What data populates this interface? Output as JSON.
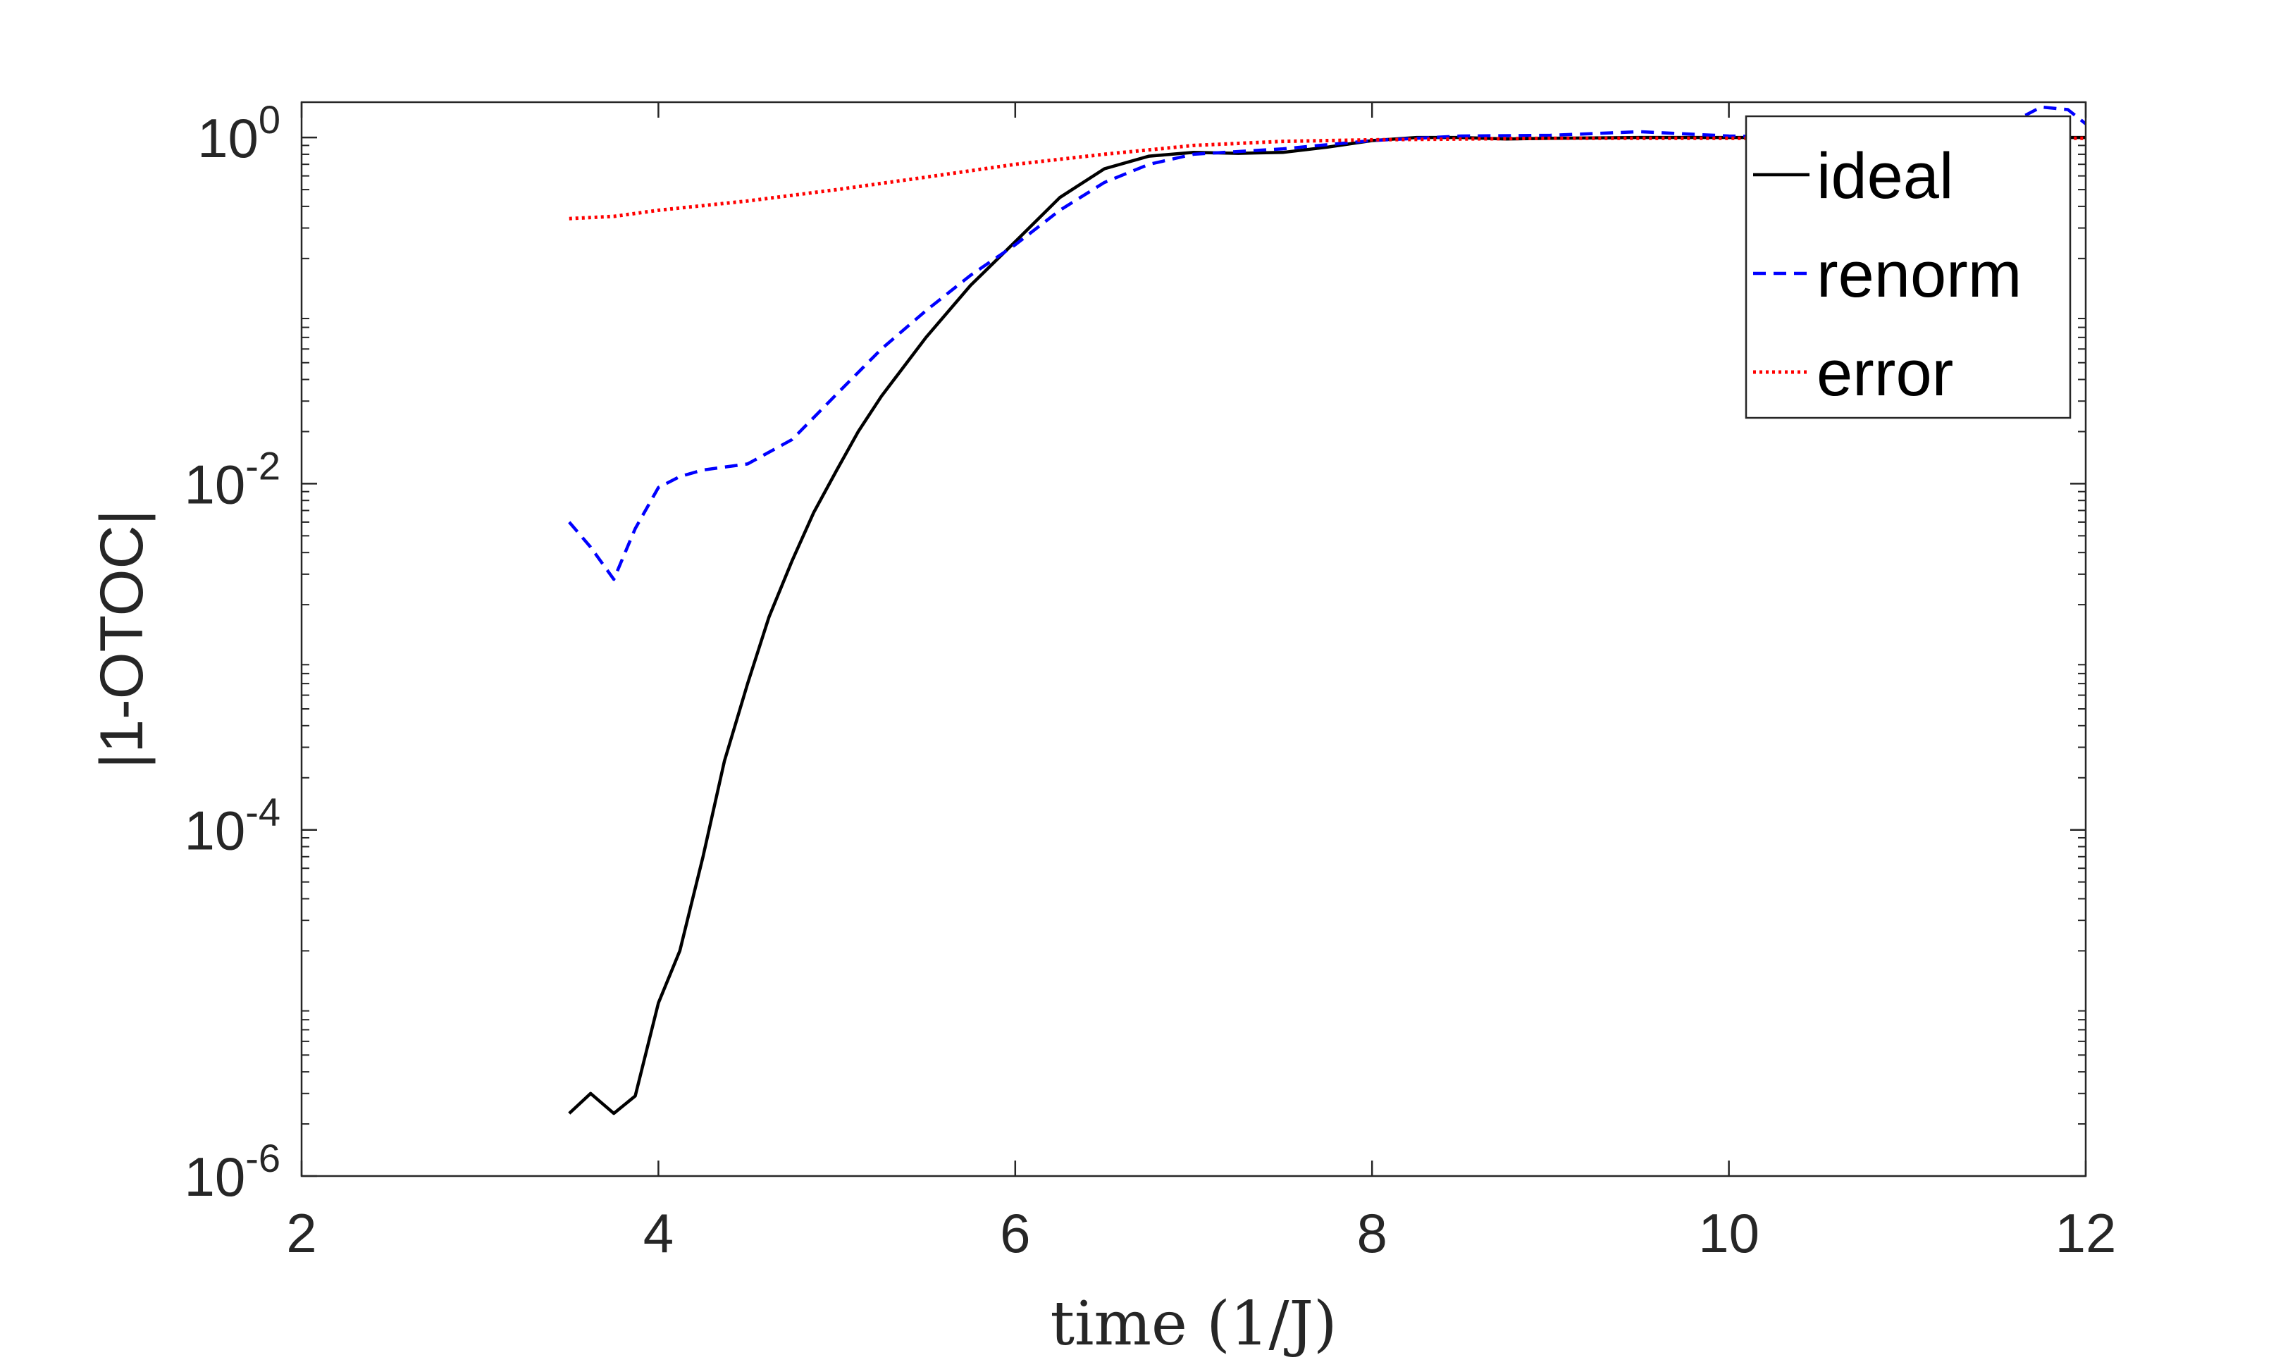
{
  "chart_data": {
    "type": "line",
    "title": "",
    "xlabel": "time (1/J)",
    "ylabel": "|1-OTOC|",
    "xlim": [
      2,
      12
    ],
    "ylim": [
      1e-06,
      1.6
    ],
    "yscale": "log",
    "grid": false,
    "legend_position": "top-right",
    "x_ticks": [
      "2",
      "4",
      "6",
      "8",
      "10",
      "12"
    ],
    "y_ticks": [
      {
        "value": 1e-06,
        "base": "10",
        "exp": "-6"
      },
      {
        "value": 0.0001,
        "base": "10",
        "exp": "-4"
      },
      {
        "value": 0.01,
        "base": "10",
        "exp": "-2"
      },
      {
        "value": 1,
        "base": "10",
        "exp": "0"
      }
    ],
    "series": [
      {
        "name": "ideal",
        "color": "#000000",
        "style": "solid",
        "x": [
          3.5,
          3.62,
          3.75,
          3.87,
          4.0,
          4.12,
          4.25,
          4.37,
          4.5,
          4.62,
          4.75,
          4.87,
          5.0,
          5.12,
          5.25,
          5.5,
          5.75,
          6.0,
          6.25,
          6.5,
          6.75,
          7.0,
          7.25,
          7.5,
          7.75,
          8.0,
          8.25,
          8.5,
          8.75,
          9.0,
          9.5,
          10.0,
          10.5,
          11.0,
          11.5,
          12.0
        ],
        "y": [
          2.3e-06,
          3e-06,
          2.3e-06,
          2.9e-06,
          1e-05,
          2e-05,
          7e-05,
          0.00025,
          0.0007,
          0.0017,
          0.0036,
          0.0068,
          0.012,
          0.02,
          0.032,
          0.07,
          0.14,
          0.25,
          0.45,
          0.66,
          0.78,
          0.82,
          0.81,
          0.82,
          0.88,
          0.96,
          1.0,
          1.0,
          0.98,
          0.99,
          1.0,
          1.0,
          1.0,
          1.0,
          1.0,
          1.0
        ]
      },
      {
        "name": "renorm",
        "color": "#0000ff",
        "style": "dashed",
        "x": [
          3.5,
          3.62,
          3.75,
          3.87,
          4.0,
          4.12,
          4.25,
          4.5,
          4.75,
          5.0,
          5.25,
          5.5,
          5.75,
          6.0,
          6.25,
          6.5,
          6.75,
          7.0,
          7.5,
          8.0,
          8.5,
          9.0,
          9.5,
          10.0,
          10.5,
          11.0,
          11.5,
          11.75,
          11.9,
          12.0
        ],
        "y": [
          0.006,
          0.0043,
          0.0028,
          0.0055,
          0.0095,
          0.011,
          0.012,
          0.013,
          0.018,
          0.033,
          0.06,
          0.1,
          0.16,
          0.24,
          0.38,
          0.55,
          0.7,
          0.8,
          0.86,
          0.96,
          1.02,
          1.03,
          1.08,
          1.02,
          1.0,
          1.0,
          1.1,
          1.5,
          1.45,
          1.2
        ]
      },
      {
        "name": "error",
        "color": "#ff0000",
        "style": "dotted",
        "x": [
          3.5,
          3.75,
          4.0,
          4.5,
          5.0,
          5.5,
          6.0,
          6.5,
          7.0,
          7.5,
          8.0,
          8.5,
          9.0,
          10.0,
          11.0,
          12.0
        ],
        "y": [
          0.34,
          0.35,
          0.38,
          0.43,
          0.5,
          0.59,
          0.7,
          0.8,
          0.9,
          0.95,
          0.97,
          0.98,
          0.99,
          0.99,
          0.99,
          0.99
        ]
      }
    ]
  }
}
